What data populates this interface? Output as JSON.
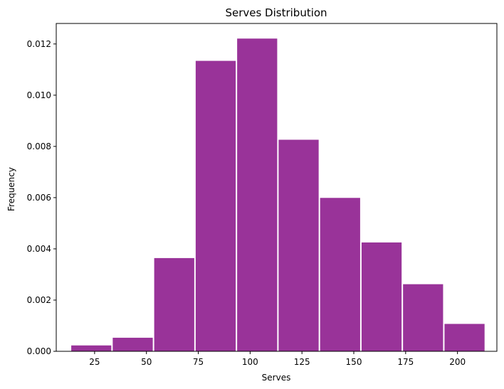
{
  "chart_data": {
    "type": "bar",
    "title": "Serves Distribution",
    "xlabel": "Serves",
    "ylabel": "Frequency",
    "bar_color": "#993399",
    "xlim": [
      6.5,
      219
    ],
    "ylim": [
      0,
      0.0128
    ],
    "xticks": [
      {
        "value": 25,
        "label": "25"
      },
      {
        "value": 50,
        "label": "50"
      },
      {
        "value": 75,
        "label": "75"
      },
      {
        "value": 100,
        "label": "100"
      },
      {
        "value": 125,
        "label": "125"
      },
      {
        "value": 150,
        "label": "150"
      },
      {
        "value": 175,
        "label": "175"
      },
      {
        "value": 200,
        "label": "200"
      }
    ],
    "yticks": [
      {
        "value": 0,
        "label": "0.000"
      },
      {
        "value": 0.002,
        "label": "0.002"
      },
      {
        "value": 0.004,
        "label": "0.004"
      },
      {
        "value": 0.006,
        "label": "0.006"
      },
      {
        "value": 0.008,
        "label": "0.008"
      },
      {
        "value": 0.01,
        "label": "0.010"
      },
      {
        "value": 0.012,
        "label": "0.012"
      }
    ],
    "bins": [
      {
        "start": 13.4,
        "end": 33.4,
        "value": 0.00023
      },
      {
        "start": 33.4,
        "end": 53.4,
        "value": 0.00053
      },
      {
        "start": 53.4,
        "end": 73.4,
        "value": 0.00364
      },
      {
        "start": 73.4,
        "end": 93.4,
        "value": 0.01134
      },
      {
        "start": 93.4,
        "end": 113.4,
        "value": 0.01221
      },
      {
        "start": 113.4,
        "end": 133.4,
        "value": 0.00826
      },
      {
        "start": 133.4,
        "end": 153.4,
        "value": 0.00599
      },
      {
        "start": 153.4,
        "end": 173.4,
        "value": 0.00425
      },
      {
        "start": 173.4,
        "end": 193.4,
        "value": 0.00262
      },
      {
        "start": 193.4,
        "end": 213.4,
        "value": 0.00107
      }
    ]
  }
}
